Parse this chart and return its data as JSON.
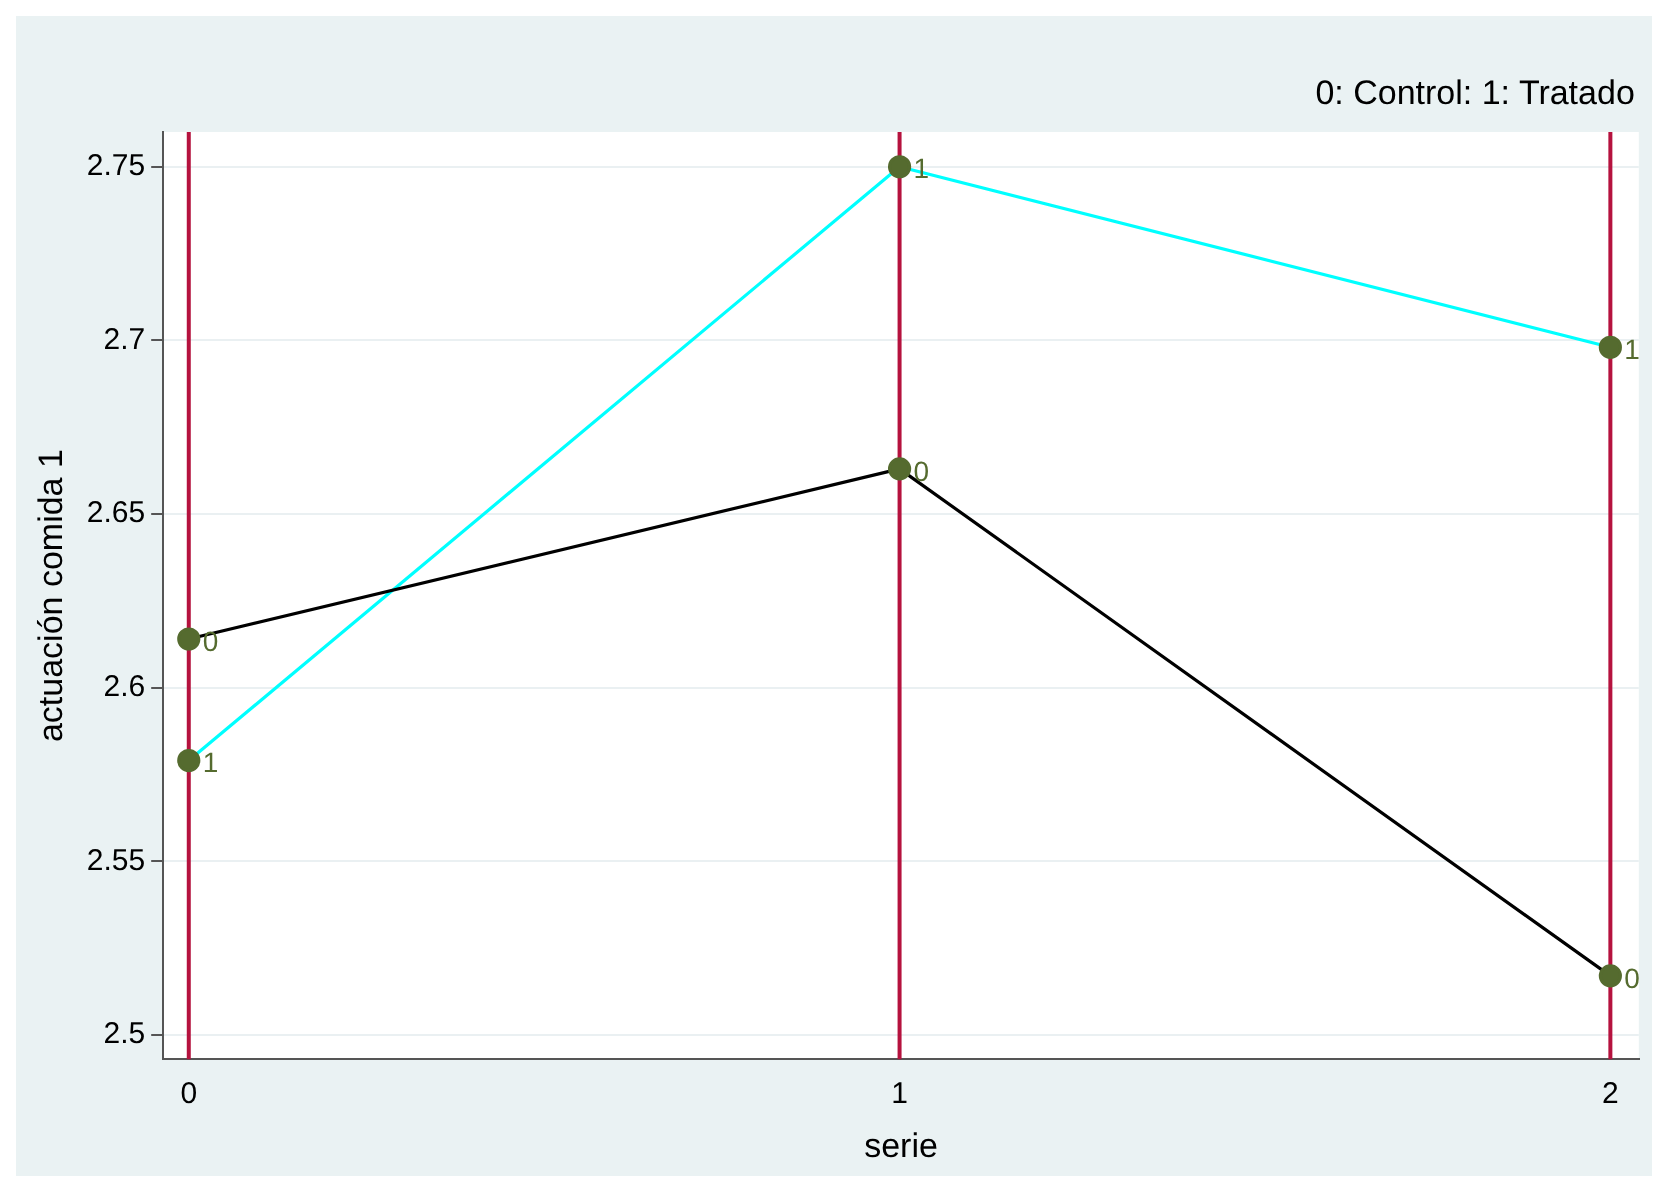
{
  "chart_data": {
    "type": "line",
    "xlabel": "serie",
    "ylabel": "actuación comida 1",
    "x": [
      0,
      1,
      2
    ],
    "series": [
      {
        "color": "#000000",
        "values": [
          2.614,
          2.663,
          2.517
        ]
      },
      {
        "color": "#00ffff",
        "values": [
          2.579,
          2.75,
          2.698
        ]
      }
    ],
    "xlim": [
      -0.036,
      2.04
    ],
    "xticks": [
      0,
      1,
      2
    ],
    "ylim": [
      2.493,
      2.76
    ],
    "yticks": [
      2.5,
      2.55,
      2.6,
      2.65,
      2.7,
      2.75
    ],
    "grid": "y",
    "legend": false,
    "marker": "circle",
    "line_style": "solid",
    "ref_lines": [
      {
        "axis": "x",
        "value": 0,
        "color": "#b5123e"
      },
      {
        "axis": "x",
        "value": 1,
        "color": "#b5123e"
      },
      {
        "axis": "x",
        "value": 2,
        "color": "#b5123e"
      }
    ],
    "annotations": [
      "0: Control: 1: Tratado",
      {
        "text": "0",
        "x": 0,
        "y": 2.614
      },
      {
        "text": "0",
        "x": 1,
        "y": 2.663
      },
      {
        "text": "0",
        "x": 2,
        "y": 2.517
      },
      {
        "text": "1",
        "x": 0,
        "y": 2.579
      },
      {
        "text": "1",
        "x": 1,
        "y": 2.75
      },
      {
        "text": "1",
        "x": 2,
        "y": 2.698
      }
    ]
  }
}
